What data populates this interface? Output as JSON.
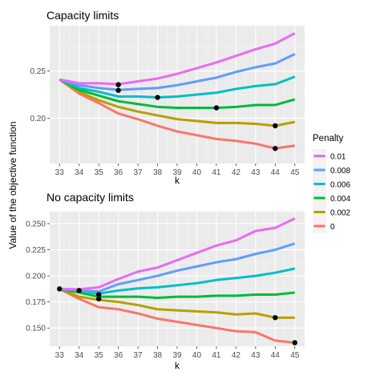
{
  "chart_data": [
    {
      "type": "line",
      "title": "Capacity limits",
      "xlabel": "k",
      "ylabel": "Value of the objective function",
      "x": [
        33,
        34,
        35,
        36,
        37,
        38,
        39,
        40,
        41,
        42,
        43,
        44,
        45
      ],
      "xlim": [
        32.5,
        45.5
      ],
      "ylim": [
        0.152,
        0.298
      ],
      "yticks": [
        0.2,
        0.25
      ],
      "ytick_labels": [
        "0.20",
        "0.25"
      ],
      "grid": true,
      "series": [
        {
          "name": "0.01",
          "color": "#E76BF3",
          "values": [
            0.241,
            0.237,
            0.237,
            0.236,
            0.239,
            0.242,
            0.247,
            0.253,
            0.259,
            0.266,
            0.273,
            0.279,
            0.29
          ]
        },
        {
          "name": "0.008",
          "color": "#619CFF",
          "values": [
            0.241,
            0.235,
            0.232,
            0.23,
            0.231,
            0.232,
            0.235,
            0.239,
            0.243,
            0.249,
            0.254,
            0.258,
            0.268
          ]
        },
        {
          "name": "0.006",
          "color": "#00BFC4",
          "values": [
            0.241,
            0.232,
            0.228,
            0.223,
            0.223,
            0.222,
            0.223,
            0.225,
            0.227,
            0.231,
            0.234,
            0.236,
            0.244
          ]
        },
        {
          "name": "0.004",
          "color": "#00BA38",
          "values": [
            0.241,
            0.23,
            0.224,
            0.218,
            0.215,
            0.212,
            0.211,
            0.211,
            0.211,
            0.212,
            0.214,
            0.214,
            0.22
          ]
        },
        {
          "name": "0.002",
          "color": "#B79F00",
          "values": [
            0.241,
            0.228,
            0.219,
            0.212,
            0.207,
            0.203,
            0.199,
            0.197,
            0.195,
            0.195,
            0.194,
            0.192,
            0.196
          ]
        },
        {
          "name": "0",
          "color": "#F8766D",
          "values": [
            0.241,
            0.226,
            0.216,
            0.205,
            0.199,
            0.192,
            0.186,
            0.182,
            0.178,
            0.176,
            0.173,
            0.168,
            0.171
          ]
        }
      ],
      "markers": [
        {
          "x": 36,
          "y": 0.2355
        },
        {
          "x": 36,
          "y": 0.2295
        },
        {
          "x": 38,
          "y": 0.222
        },
        {
          "x": 41,
          "y": 0.211
        },
        {
          "x": 44,
          "y": 0.192
        },
        {
          "x": 44,
          "y": 0.168
        }
      ]
    },
    {
      "type": "line",
      "title": "No capacity limits",
      "xlabel": "k",
      "ylabel": "Value of the objective function",
      "x": [
        33,
        34,
        35,
        36,
        37,
        38,
        39,
        40,
        41,
        42,
        43,
        44,
        45
      ],
      "xlim": [
        32.5,
        45.5
      ],
      "ylim": [
        0.1325,
        0.2615
      ],
      "yticks": [
        0.15,
        0.175,
        0.2,
        0.225,
        0.25
      ],
      "ytick_labels": [
        "0.150",
        "0.175",
        "0.200",
        "0.225",
        "0.250"
      ],
      "grid": true,
      "series": [
        {
          "name": "0.01",
          "color": "#E76BF3",
          "values": [
            0.1875,
            0.187,
            0.189,
            0.197,
            0.204,
            0.208,
            0.215,
            0.222,
            0.229,
            0.234,
            0.243,
            0.246,
            0.255
          ]
        },
        {
          "name": "0.008",
          "color": "#619CFF",
          "values": [
            0.1875,
            0.186,
            0.185,
            0.192,
            0.196,
            0.2,
            0.205,
            0.209,
            0.213,
            0.216,
            0.221,
            0.225,
            0.231
          ]
        },
        {
          "name": "0.006",
          "color": "#00BFC4",
          "values": [
            0.1875,
            0.186,
            0.183,
            0.186,
            0.188,
            0.189,
            0.191,
            0.193,
            0.196,
            0.198,
            0.2,
            0.203,
            0.207
          ]
        },
        {
          "name": "0.004",
          "color": "#00BA38",
          "values": [
            0.1875,
            0.184,
            0.18,
            0.18,
            0.18,
            0.179,
            0.18,
            0.18,
            0.181,
            0.181,
            0.182,
            0.182,
            0.184
          ]
        },
        {
          "name": "0.002",
          "color": "#B79F00",
          "values": [
            0.1875,
            0.18,
            0.177,
            0.175,
            0.172,
            0.168,
            0.167,
            0.166,
            0.165,
            0.163,
            0.164,
            0.16,
            0.16
          ]
        },
        {
          "name": "0",
          "color": "#F8766D",
          "values": [
            0.1875,
            0.178,
            0.17,
            0.168,
            0.164,
            0.159,
            0.156,
            0.153,
            0.15,
            0.147,
            0.146,
            0.138,
            0.136
          ]
        }
      ],
      "markers": [
        {
          "x": 33,
          "y": 0.1875
        },
        {
          "x": 34,
          "y": 0.186
        },
        {
          "x": 35,
          "y": 0.182
        },
        {
          "x": 35,
          "y": 0.178
        },
        {
          "x": 44,
          "y": 0.16
        },
        {
          "x": 45,
          "y": 0.136
        }
      ]
    }
  ],
  "legend": {
    "title": "Penalty",
    "placement": "right",
    "entries": [
      {
        "label": "0.01",
        "color": "#E76BF3"
      },
      {
        "label": "0.008",
        "color": "#619CFF"
      },
      {
        "label": "0.006",
        "color": "#00BFC4"
      },
      {
        "label": "0.004",
        "color": "#00BA38"
      },
      {
        "label": "0.002",
        "color": "#B79F00"
      },
      {
        "label": "0",
        "color": "#F8766D"
      }
    ]
  },
  "shared_ylabel": "Value of the objective function"
}
